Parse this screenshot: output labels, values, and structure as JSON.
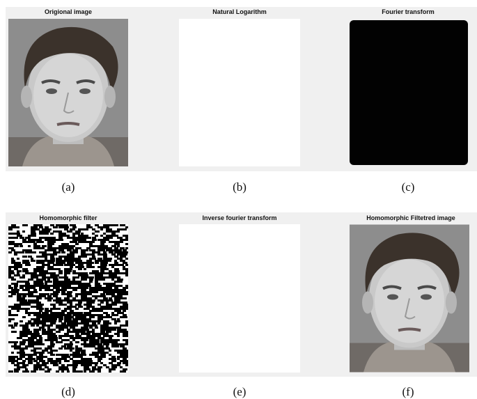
{
  "panels": [
    {
      "title": "Origional image",
      "caption": "(a)"
    },
    {
      "title": "Natural Logarithm",
      "caption": "(b)"
    },
    {
      "title": "Fourier transform",
      "caption": "(c)"
    },
    {
      "title": "Homomorphic filter",
      "caption": "(d)"
    },
    {
      "title": "Inverse fourier transform",
      "caption": "(e)"
    },
    {
      "title": "Homomorphic Filtetred image",
      "caption": "(f)"
    }
  ]
}
